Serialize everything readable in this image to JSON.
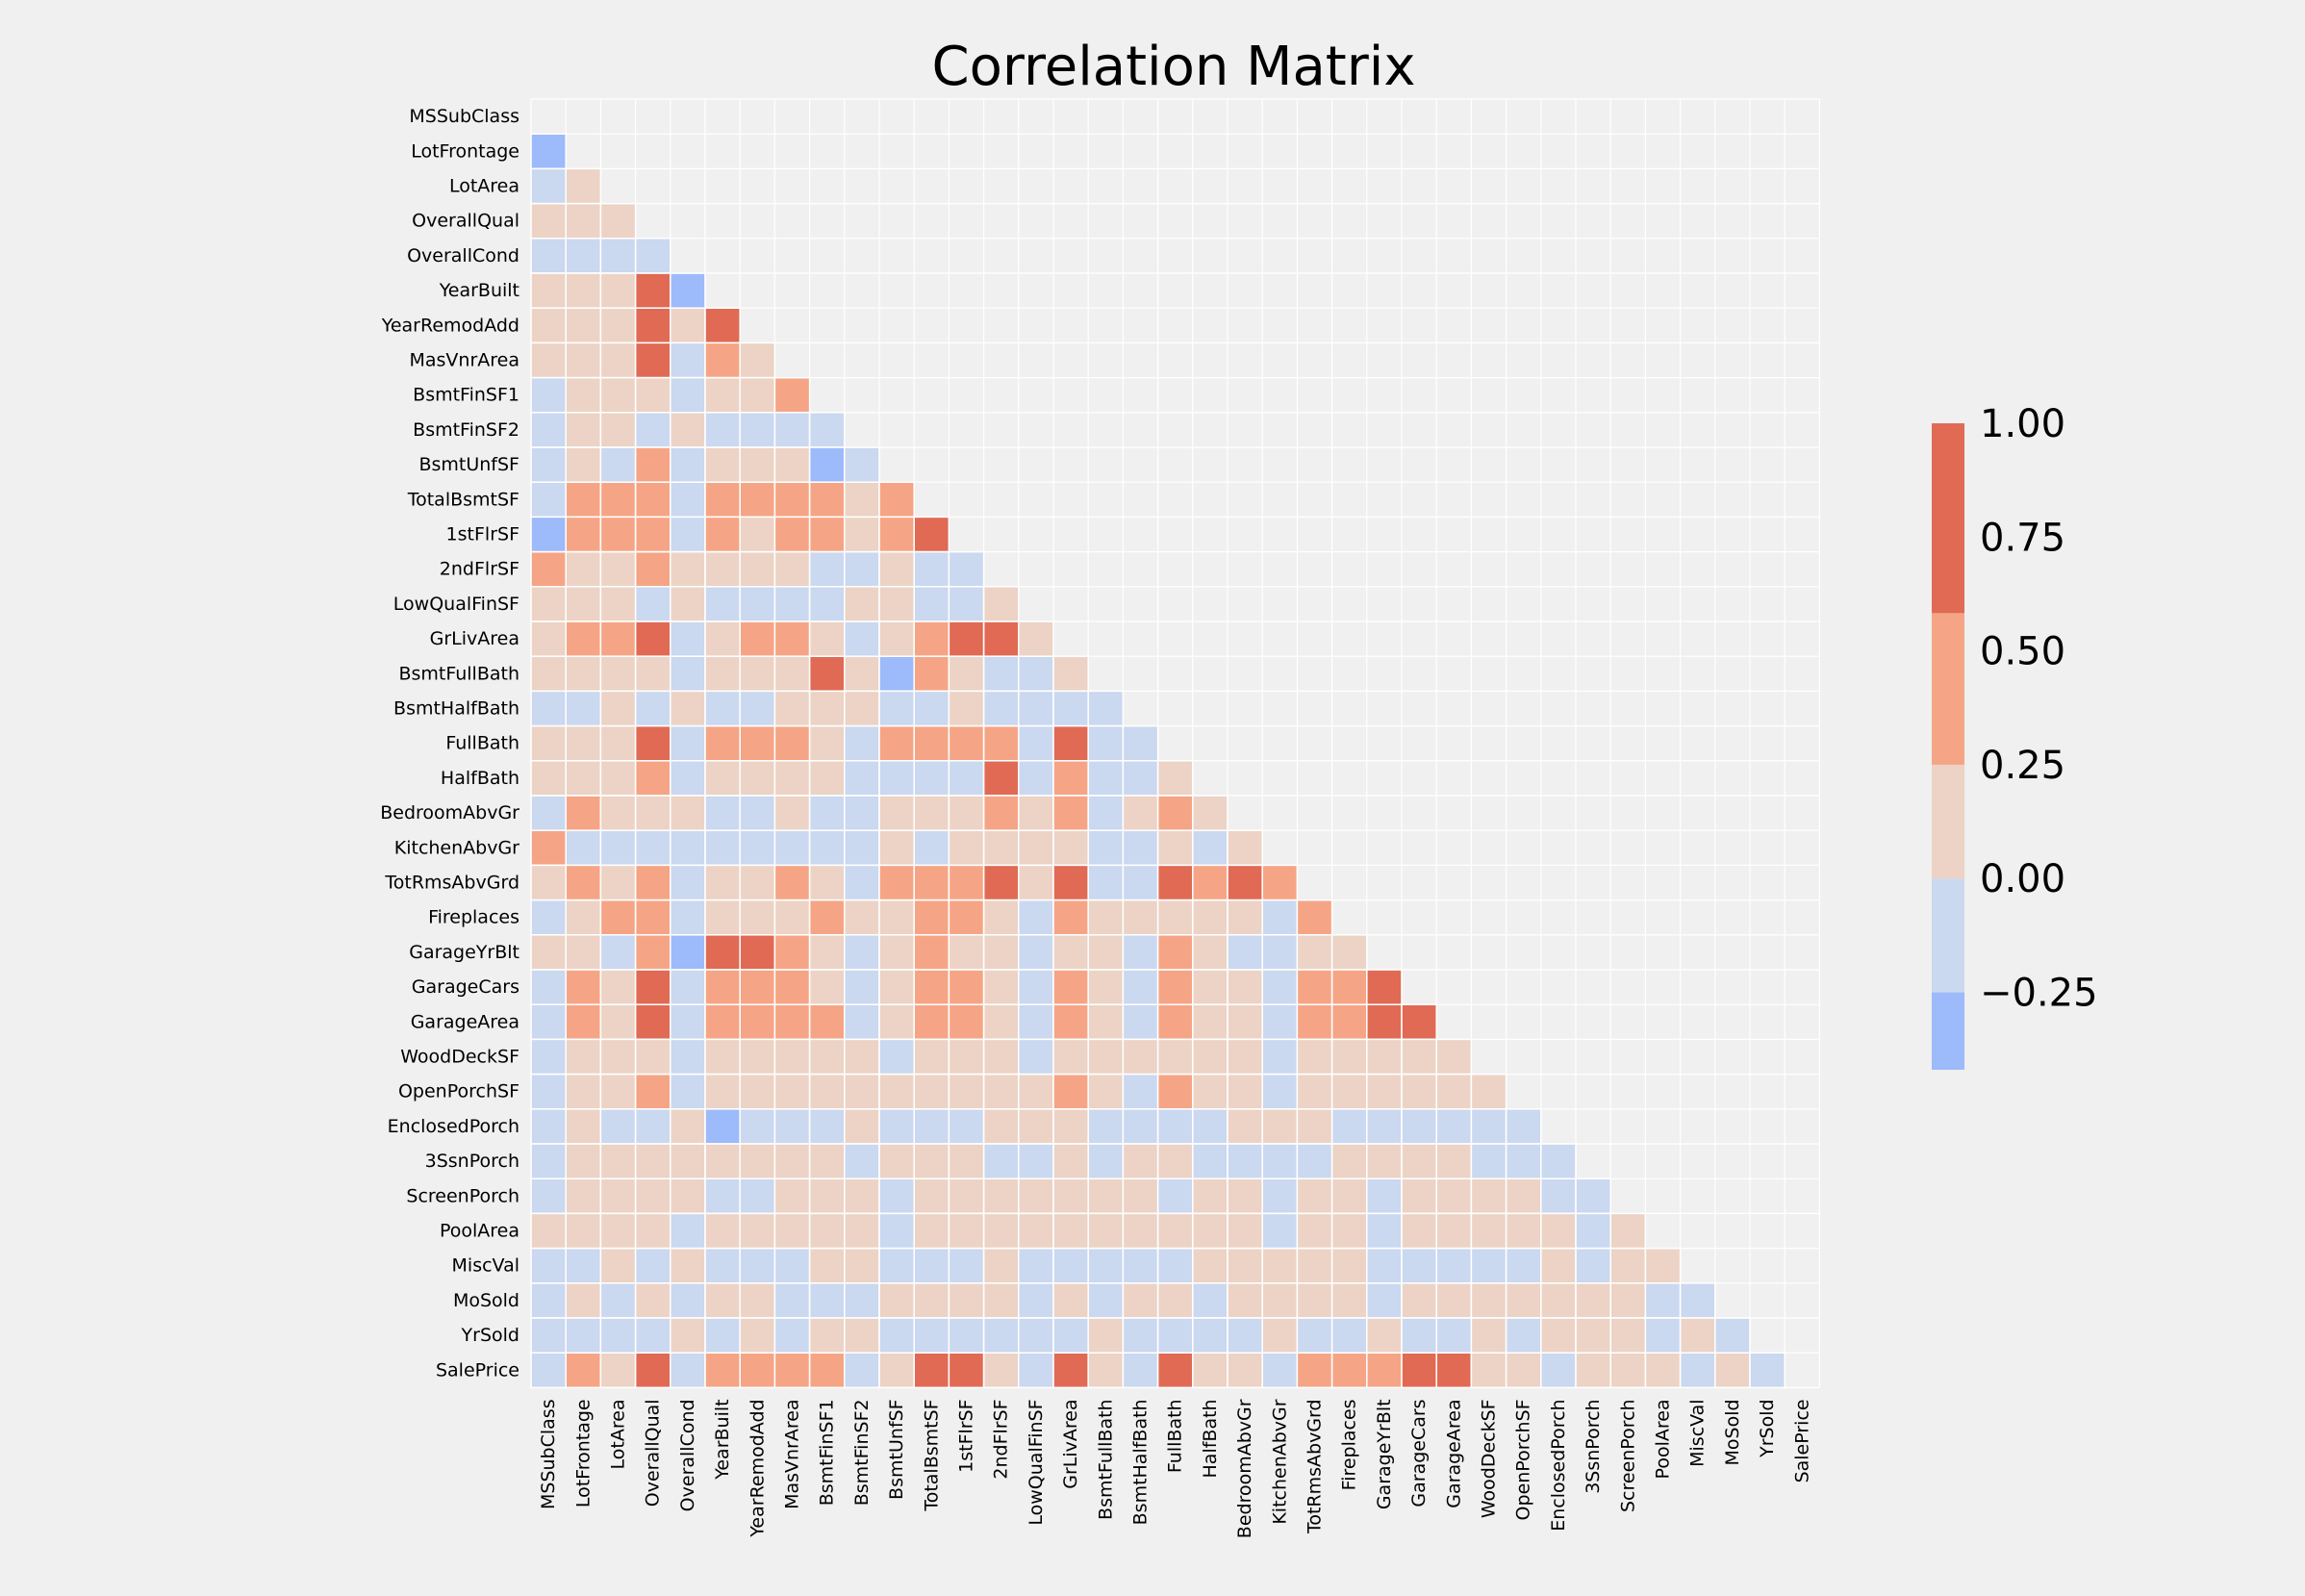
{
  "chart_data": {
    "type": "heatmap",
    "title": "Correlation Matrix",
    "mask": "upper-triangle-and-diagonal",
    "labels": [
      "MSSubClass",
      "LotFrontage",
      "LotArea",
      "OverallQual",
      "OverallCond",
      "YearBuilt",
      "YearRemodAdd",
      "MasVnrArea",
      "BsmtFinSF1",
      "BsmtFinSF2",
      "BsmtUnfSF",
      "TotalBsmtSF",
      "1stFlrSF",
      "2ndFlrSF",
      "LowQualFinSF",
      "GrLivArea",
      "BsmtFullBath",
      "BsmtHalfBath",
      "FullBath",
      "HalfBath",
      "BedroomAbvGr",
      "KitchenAbvGr",
      "TotRmsAbvGrd",
      "Fireplaces",
      "GarageYrBlt",
      "GarageCars",
      "GarageArea",
      "WoodDeckSF",
      "OpenPorchSF",
      "EnclosedPorch",
      "3SsnPorch",
      "ScreenPorch",
      "PoolArea",
      "MiscVal",
      "MoSold",
      "YrSold",
      "SalePrice"
    ],
    "values": [
      [],
      [
        -0.4
      ],
      [
        -0.1,
        0.1
      ],
      [
        0.1,
        0.1,
        0.1
      ],
      [
        -0.1,
        -0.1,
        -0.1,
        -0.1
      ],
      [
        0.1,
        0.1,
        0.1,
        0.6,
        -0.4
      ],
      [
        0.1,
        0.1,
        0.1,
        0.6,
        0.1,
        0.6
      ],
      [
        0.1,
        0.1,
        0.1,
        0.6,
        -0.1,
        0.3,
        0.2
      ],
      [
        -0.1,
        0.1,
        0.1,
        0.2,
        -0.1,
        0.2,
        0.2,
        0.3
      ],
      [
        -0.1,
        0.1,
        0.1,
        -0.1,
        0.1,
        -0.1,
        -0.1,
        -0.1,
        -0.1
      ],
      [
        -0.1,
        0.1,
        -0.1,
        0.3,
        -0.1,
        0.2,
        0.2,
        0.1,
        -0.5,
        -0.2
      ],
      [
        -0.2,
        0.4,
        0.3,
        0.5,
        -0.2,
        0.4,
        0.3,
        0.4,
        0.5,
        0.1,
        0.4
      ],
      [
        -0.3,
        0.4,
        0.3,
        0.5,
        -0.1,
        0.3,
        0.2,
        0.3,
        0.4,
        0.1,
        0.3,
        0.8
      ],
      [
        0.3,
        0.1,
        0.1,
        0.3,
        0.1,
        0.1,
        0.1,
        0.2,
        -0.1,
        -0.1,
        0.1,
        -0.2,
        -0.2
      ],
      [
        0.1,
        0.1,
        0.1,
        -0.1,
        0.1,
        -0.1,
        -0.1,
        -0.1,
        -0.1,
        0.1,
        0.1,
        -0.1,
        -0.1,
        0.1
      ],
      [
        0.1,
        0.4,
        0.3,
        0.6,
        -0.1,
        0.2,
        0.3,
        0.4,
        0.2,
        -0.1,
        0.2,
        0.5,
        0.6,
        0.7,
        0.1
      ],
      [
        0.1,
        0.1,
        0.2,
        0.1,
        -0.1,
        0.2,
        0.1,
        0.1,
        0.6,
        0.2,
        -0.4,
        0.3,
        0.2,
        -0.2,
        -0.1,
        0.1
      ],
      [
        -0.1,
        -0.1,
        0.1,
        -0.1,
        0.1,
        -0.1,
        -0.1,
        0.1,
        0.1,
        0.1,
        -0.1,
        -0.1,
        0.1,
        -0.1,
        -0.1,
        -0.1,
        -0.2
      ],
      [
        0.1,
        0.2,
        0.1,
        0.6,
        -0.2,
        0.5,
        0.4,
        0.3,
        0.1,
        -0.1,
        0.3,
        0.3,
        0.4,
        0.4,
        -0.1,
        0.6,
        -0.1,
        -0.1
      ],
      [
        0.2,
        0.1,
        0.1,
        0.3,
        -0.1,
        0.2,
        0.2,
        0.2,
        0.1,
        -0.1,
        -0.1,
        -0.1,
        -0.1,
        0.6,
        -0.1,
        0.4,
        -0.1,
        -0.1,
        0.1
      ],
      [
        -0.1,
        0.3,
        0.1,
        0.1,
        0.1,
        -0.1,
        -0.1,
        0.1,
        -0.1,
        -0.1,
        0.2,
        0.1,
        0.1,
        0.5,
        0.1,
        0.5,
        -0.2,
        0.1,
        0.4,
        0.2
      ],
      [
        0.3,
        -0.1,
        -0.1,
        -0.2,
        -0.1,
        -0.2,
        -0.2,
        -0.1,
        -0.1,
        -0.1,
        0.1,
        -0.1,
        0.1,
        0.1,
        0.1,
        0.1,
        -0.1,
        -0.1,
        0.1,
        -0.1,
        0.2
      ],
      [
        0.1,
        0.4,
        0.2,
        0.4,
        -0.1,
        0.1,
        0.2,
        0.3,
        0.1,
        -0.1,
        0.3,
        0.3,
        0.4,
        0.6,
        0.1,
        0.8,
        -0.1,
        -0.1,
        0.6,
        0.4,
        0.7,
        0.3
      ],
      [
        -0.1,
        0.2,
        0.3,
        0.4,
        -0.1,
        0.1,
        0.1,
        0.2,
        0.3,
        0.1,
        0.1,
        0.3,
        0.4,
        0.2,
        -0.1,
        0.5,
        0.1,
        0.1,
        0.2,
        0.2,
        0.1,
        -0.1,
        0.3
      ],
      [
        0.1,
        0.1,
        -0.1,
        0.5,
        -0.3,
        0.8,
        0.6,
        0.3,
        0.2,
        -0.1,
        0.2,
        0.3,
        0.2,
        0.1,
        -0.1,
        0.2,
        0.1,
        -0.1,
        0.5,
        0.2,
        -0.1,
        -0.1,
        0.1,
        0.1
      ],
      [
        -0.1,
        0.3,
        0.2,
        0.6,
        -0.2,
        0.5,
        0.4,
        0.4,
        0.2,
        -0.1,
        0.2,
        0.4,
        0.4,
        0.2,
        -0.1,
        0.5,
        0.1,
        -0.1,
        0.5,
        0.2,
        0.1,
        -0.1,
        0.4,
        0.3,
        0.6
      ],
      [
        -0.1,
        0.4,
        0.2,
        0.6,
        -0.2,
        0.5,
        0.4,
        0.4,
        0.3,
        -0.1,
        0.2,
        0.5,
        0.5,
        0.1,
        -0.1,
        0.5,
        0.2,
        -0.1,
        0.4,
        0.2,
        0.1,
        -0.1,
        0.3,
        0.3,
        0.6,
        0.9
      ],
      [
        -0.1,
        0.1,
        0.2,
        0.2,
        -0.1,
        0.2,
        0.2,
        0.2,
        0.2,
        0.1,
        -0.1,
        0.2,
        0.2,
        0.1,
        -0.1,
        0.2,
        0.2,
        0.1,
        0.2,
        0.1,
        0.1,
        -0.1,
        0.2,
        0.2,
        0.2,
        0.2,
        0.2
      ],
      [
        -0.1,
        0.2,
        0.1,
        0.3,
        -0.1,
        0.2,
        0.2,
        0.1,
        0.1,
        0.1,
        0.1,
        0.2,
        0.2,
        0.2,
        0.1,
        0.3,
        0.1,
        -0.1,
        0.3,
        0.2,
        0.1,
        -0.1,
        0.2,
        0.2,
        0.2,
        0.2,
        0.2,
        0.1
      ],
      [
        -0.1,
        0.1,
        -0.1,
        -0.1,
        0.1,
        -0.4,
        -0.2,
        -0.1,
        -0.1,
        0.1,
        -0.1,
        -0.1,
        -0.1,
        0.1,
        0.1,
        0.1,
        -0.1,
        -0.1,
        -0.1,
        -0.1,
        0.1,
        0.1,
        0.1,
        -0.1,
        -0.2,
        -0.2,
        -0.1,
        -0.1,
        -0.1
      ],
      [
        -0.1,
        0.1,
        0.1,
        0.1,
        0.1,
        0.1,
        0.1,
        0.1,
        0.1,
        -0.1,
        0.1,
        0.1,
        0.1,
        -0.1,
        -0.1,
        0.1,
        -0.1,
        0.1,
        0.1,
        -0.1,
        -0.1,
        -0.1,
        -0.1,
        0.1,
        0.1,
        0.1,
        0.1,
        -0.1,
        -0.1,
        -0.1
      ],
      [
        -0.1,
        0.1,
        0.1,
        0.1,
        0.1,
        -0.1,
        -0.1,
        0.1,
        0.1,
        0.1,
        -0.1,
        0.1,
        0.1,
        0.1,
        0.1,
        0.1,
        0.1,
        0.1,
        -0.1,
        0.1,
        0.1,
        -0.1,
        0.1,
        0.1,
        -0.1,
        0.1,
        0.1,
        0.1,
        0.1,
        -0.1,
        -0.1
      ],
      [
        0.1,
        0.1,
        0.1,
        0.1,
        -0.1,
        0.1,
        0.1,
        0.1,
        0.1,
        0.1,
        -0.1,
        0.1,
        0.1,
        0.1,
        0.1,
        0.1,
        0.1,
        0.1,
        0.1,
        0.1,
        0.1,
        -0.1,
        0.1,
        0.1,
        -0.1,
        0.1,
        0.1,
        0.1,
        0.1,
        0.1,
        -0.1,
        0.1
      ],
      [
        -0.1,
        -0.1,
        0.1,
        -0.1,
        0.1,
        -0.1,
        -0.1,
        -0.1,
        0.1,
        0.1,
        -0.1,
        -0.1,
        -0.1,
        0.1,
        -0.1,
        -0.1,
        -0.1,
        -0.1,
        -0.1,
        0.1,
        0.1,
        0.1,
        0.1,
        0.1,
        -0.1,
        -0.1,
        -0.1,
        -0.1,
        -0.1,
        0.1,
        -0.1,
        0.1,
        0.1
      ],
      [
        -0.1,
        0.1,
        -0.1,
        0.1,
        -0.1,
        0.1,
        0.1,
        -0.1,
        -0.1,
        -0.1,
        0.1,
        0.1,
        0.1,
        0.1,
        -0.1,
        0.1,
        -0.1,
        0.1,
        0.1,
        -0.1,
        0.1,
        0.1,
        0.1,
        0.1,
        -0.1,
        0.1,
        0.1,
        0.1,
        0.1,
        0.1,
        0.1,
        0.1,
        -0.1,
        -0.1
      ],
      [
        -0.1,
        -0.1,
        -0.1,
        -0.1,
        0.1,
        -0.1,
        0.1,
        -0.1,
        0.1,
        0.1,
        -0.1,
        -0.1,
        -0.1,
        -0.1,
        -0.1,
        -0.1,
        0.1,
        -0.1,
        -0.1,
        -0.1,
        -0.1,
        0.1,
        -0.1,
        -0.1,
        0.1,
        -0.1,
        -0.1,
        0.1,
        -0.1,
        0.1,
        0.1,
        0.1,
        -0.1,
        0.1,
        -0.1
      ],
      [
        -0.1,
        0.4,
        0.2,
        0.8,
        -0.1,
        0.5,
        0.5,
        0.5,
        0.4,
        -0.1,
        0.2,
        0.6,
        0.6,
        0.2,
        -0.1,
        0.7,
        0.2,
        -0.1,
        0.6,
        0.2,
        0.1,
        -0.1,
        0.5,
        0.4,
        0.5,
        0.6,
        0.6,
        0.2,
        0.2,
        -0.1,
        0.1,
        0.1,
        0.1,
        -0.1,
        0.1,
        -0.1
      ]
    ],
    "colorbar": {
      "ticks": [
        1.0,
        0.75,
        0.5,
        0.25,
        0.0,
        -0.25
      ],
      "tick_labels": [
        "1.00",
        "0.75",
        "0.50",
        "0.25",
        "0.00",
        "−0.25"
      ],
      "min": -0.42,
      "max": 1.0,
      "bins": [
        {
          "from": -0.42,
          "to": -0.25,
          "color": "#9dbafa"
        },
        {
          "from": -0.25,
          "to": 0.0,
          "color": "#cad8f0"
        },
        {
          "from": 0.0,
          "to": 0.25,
          "color": "#ecd3c5"
        },
        {
          "from": 0.25,
          "to": 0.583,
          "color": "#f5a585"
        },
        {
          "from": 0.583,
          "to": 1.0,
          "color": "#e06a54"
        }
      ]
    },
    "background_color": "#f0f0f0",
    "grid_line_color": "#ffffff"
  }
}
